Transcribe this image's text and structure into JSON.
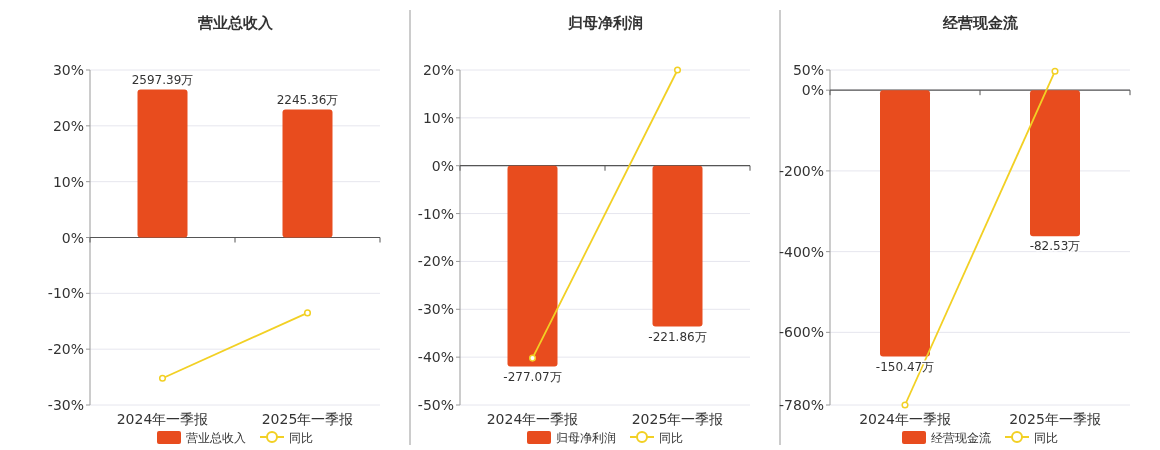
{
  "chart_data": [
    {
      "type": "bar",
      "title": "营业总收入",
      "categories": [
        "2024年一季报",
        "2025年一季报"
      ],
      "series": [
        {
          "name": "营业总收入",
          "color": "#e84c1e",
          "axis": "y2",
          "values": [
            2597.39,
            2245.36
          ],
          "value_labels": [
            "2597.39万",
            "2245.36万"
          ]
        },
        {
          "name": "同比",
          "type": "line",
          "color": "#f2d024",
          "values": [
            -25.2,
            -13.5
          ]
        }
      ],
      "ylim": [
        -30,
        30
      ],
      "yticks": [
        {
          "value": -30,
          "label": "-30%"
        },
        {
          "value": -20,
          "label": "-20%"
        },
        {
          "value": -10,
          "label": "-10%"
        },
        {
          "value": 0,
          "label": "0%"
        },
        {
          "value": 10,
          "label": "10%"
        },
        {
          "value": 20,
          "label": "20%"
        },
        {
          "value": 30,
          "label": "30%"
        }
      ],
      "y2lim": [
        -2940,
        2940
      ],
      "grid": "y",
      "legend": "bottom",
      "marker": "circle"
    },
    {
      "type": "bar",
      "title": "归母净利润",
      "categories": [
        "2024年一季报",
        "2025年一季报"
      ],
      "series": [
        {
          "name": "归母净利润",
          "color": "#e84c1e",
          "axis": "y2",
          "values": [
            -277.07,
            -221.86
          ],
          "value_labels": [
            "-277.07万",
            "-221.86万"
          ]
        },
        {
          "name": "同比",
          "type": "line",
          "color": "#f2d024",
          "values": [
            -40.2,
            20
          ]
        }
      ],
      "ylim": [
        -50,
        20
      ],
      "yticks": [
        {
          "value": -50,
          "label": "-50%"
        },
        {
          "value": -40,
          "label": "-40%"
        },
        {
          "value": -30,
          "label": "-30%"
        },
        {
          "value": -20,
          "label": "-20%"
        },
        {
          "value": -10,
          "label": "-10%"
        },
        {
          "value": 0,
          "label": "0%"
        },
        {
          "value": 10,
          "label": "10%"
        },
        {
          "value": 20,
          "label": "20%"
        }
      ],
      "y2lim": [
        -330,
        132
      ],
      "grid": "y",
      "legend": "bottom",
      "marker": "circle"
    },
    {
      "type": "bar",
      "title": "经营现金流",
      "categories": [
        "2024年一季报",
        "2025年一季报"
      ],
      "series": [
        {
          "name": "经营现金流",
          "color": "#e84c1e",
          "axis": "y2",
          "values": [
            -150.47,
            -82.53
          ],
          "value_labels": [
            "-150.47万",
            "-82.53万"
          ]
        },
        {
          "name": "同比",
          "type": "line",
          "color": "#f2d024",
          "values": [
            -780,
            47
          ]
        }
      ],
      "ylim": [
        -780,
        50
      ],
      "yticks": [
        {
          "value": -780,
          "label": "-780%"
        },
        {
          "value": -600,
          "label": "-600%"
        },
        {
          "value": -400,
          "label": "-400%"
        },
        {
          "value": -200,
          "label": "-200%"
        },
        {
          "value": 0,
          "label": "0%"
        },
        {
          "value": 50,
          "label": "50%"
        }
      ],
      "y2lim": [
        -177.8,
        11.4
      ],
      "grid": "y",
      "legend": "bottom",
      "marker": "circle"
    }
  ]
}
